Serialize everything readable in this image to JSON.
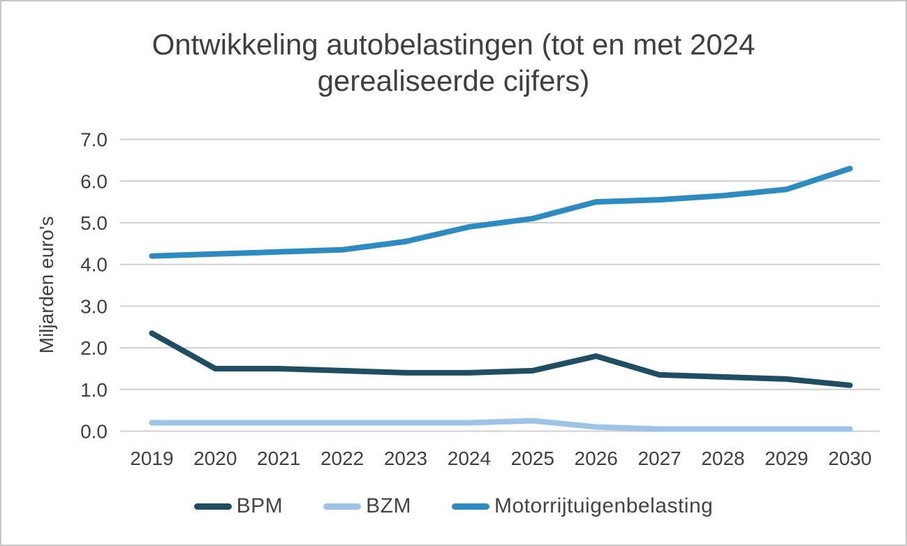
{
  "title_lines": [
    "Ontwikkeling autobelastingen (tot en met 2024",
    "gerealiseerde cijfers)"
  ],
  "chart_data": {
    "type": "line",
    "title": "Ontwikkeling autobelastingen (tot en met 2024 gerealiseerde cijfers)",
    "xlabel": "",
    "ylabel": "Miljarden euro's",
    "ylim": [
      0.0,
      7.0
    ],
    "ytick_step": 1.0,
    "ytick_labels": [
      "0.0",
      "1.0",
      "2.0",
      "3.0",
      "4.0",
      "5.0",
      "6.0",
      "7.0"
    ],
    "categories": [
      "2019",
      "2020",
      "2021",
      "2022",
      "2023",
      "2024",
      "2025",
      "2026",
      "2027",
      "2028",
      "2029",
      "2030"
    ],
    "series": [
      {
        "name": "BPM",
        "color": "#1f4e63",
        "values": [
          2.35,
          1.5,
          1.5,
          1.45,
          1.4,
          1.4,
          1.45,
          1.8,
          1.35,
          1.3,
          1.25,
          1.1
        ]
      },
      {
        "name": "BZM",
        "color": "#9dc3e6",
        "values": [
          0.2,
          0.2,
          0.2,
          0.2,
          0.2,
          0.2,
          0.25,
          0.1,
          0.05,
          0.05,
          0.05,
          0.05
        ]
      },
      {
        "name": "Motorrijtuigenbelasting",
        "color": "#2e8bc0",
        "values": [
          4.2,
          4.25,
          4.3,
          4.35,
          4.55,
          4.9,
          5.1,
          5.5,
          5.55,
          5.65,
          5.8,
          6.3
        ]
      }
    ],
    "grid": true,
    "grid_color": "#cfcfcf",
    "text_color": "#404040",
    "legend_position": "bottom"
  }
}
